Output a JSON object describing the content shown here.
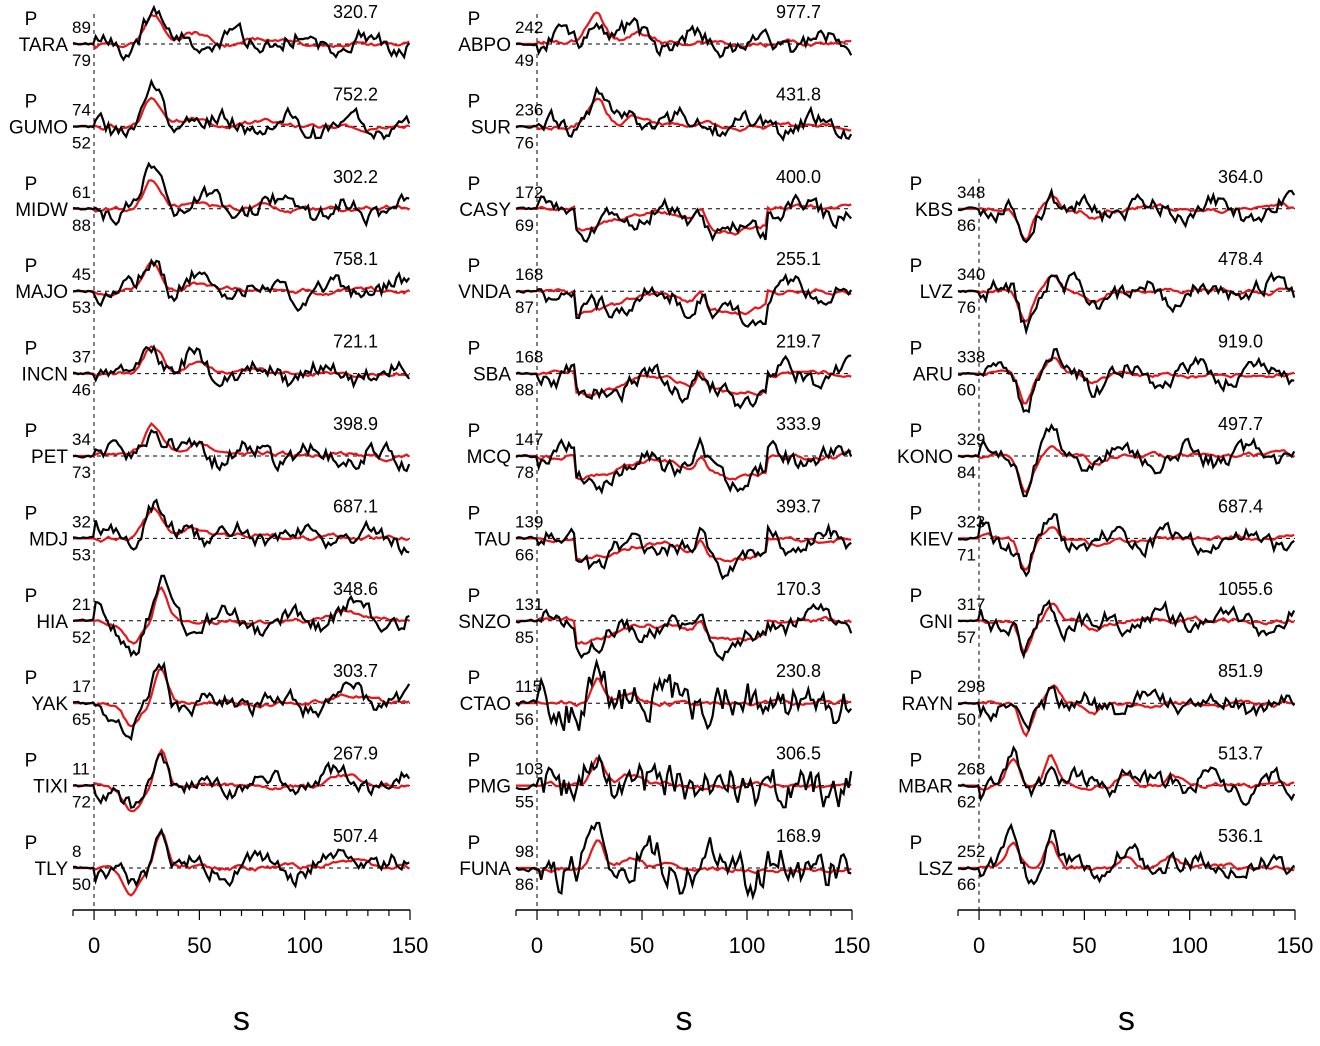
{
  "chart_data": {
    "type": "line",
    "phase_label": "P",
    "xlabel": "s",
    "xlim": [
      -10,
      150
    ],
    "xticks": [
      0,
      50,
      100,
      150
    ],
    "trace_colors": {
      "observed": "#000000",
      "synthetic": "#e8161b"
    },
    "columns": [
      {
        "stations": [
          {
            "name": "TARA",
            "azimuth": "89",
            "distance": "79",
            "amplitude": "320.7",
            "shape": "pos",
            "seed": 1
          },
          {
            "name": "GUMO",
            "azimuth": "74",
            "distance": "52",
            "amplitude": "752.2",
            "shape": "pos",
            "seed": 2
          },
          {
            "name": "MIDW",
            "azimuth": "61",
            "distance": "88",
            "amplitude": "302.2",
            "shape": "pos",
            "seed": 3
          },
          {
            "name": "MAJO",
            "azimuth": "45",
            "distance": "53",
            "amplitude": "758.1",
            "shape": "pos",
            "seed": 4
          },
          {
            "name": "INCN",
            "azimuth": "37",
            "distance": "46",
            "amplitude": "721.1",
            "shape": "pos",
            "seed": 5
          },
          {
            "name": "PET",
            "azimuth": "34",
            "distance": "73",
            "amplitude": "398.9",
            "shape": "pos",
            "seed": 6
          },
          {
            "name": "MDJ",
            "azimuth": "32",
            "distance": "53",
            "amplitude": "687.1",
            "shape": "pos",
            "seed": 7
          },
          {
            "name": "HIA",
            "azimuth": "21",
            "distance": "52",
            "amplitude": "348.6",
            "shape": "dippos",
            "seed": 8
          },
          {
            "name": "YAK",
            "azimuth": "17",
            "distance": "65",
            "amplitude": "303.7",
            "shape": "dippos",
            "seed": 9
          },
          {
            "name": "TIXI",
            "azimuth": "11",
            "distance": "72",
            "amplitude": "267.9",
            "shape": "dippos",
            "seed": 10
          },
          {
            "name": "TLY",
            "azimuth": "8",
            "distance": "50",
            "amplitude": "507.4",
            "shape": "dippos",
            "seed": 11
          }
        ]
      },
      {
        "stations": [
          {
            "name": "ABPO",
            "azimuth": "242",
            "distance": "49",
            "amplitude": "977.7",
            "shape": "pos",
            "seed": 12
          },
          {
            "name": "SUR",
            "azimuth": "236",
            "distance": "76",
            "amplitude": "431.8",
            "shape": "pos",
            "seed": 13
          },
          {
            "name": "CASY",
            "azimuth": "172",
            "distance": "69",
            "amplitude": "400.0",
            "shape": "neglong",
            "seed": 14
          },
          {
            "name": "VNDA",
            "azimuth": "168",
            "distance": "87",
            "amplitude": "255.1",
            "shape": "neglong",
            "seed": 15
          },
          {
            "name": "SBA",
            "azimuth": "168",
            "distance": "88",
            "amplitude": "219.7",
            "shape": "neglong",
            "seed": 16
          },
          {
            "name": "MCQ",
            "azimuth": "147",
            "distance": "78",
            "amplitude": "333.9",
            "shape": "neglong",
            "seed": 17
          },
          {
            "name": "TAU",
            "azimuth": "139",
            "distance": "66",
            "amplitude": "393.7",
            "shape": "neglong",
            "seed": 18
          },
          {
            "name": "SNZO",
            "azimuth": "131",
            "distance": "85",
            "amplitude": "170.3",
            "shape": "neglong",
            "seed": 19
          },
          {
            "name": "CTAO",
            "azimuth": "115",
            "distance": "56",
            "amplitude": "230.8",
            "shape": "noisy",
            "seed": 20
          },
          {
            "name": "PMG",
            "azimuth": "103",
            "distance": "55",
            "amplitude": "306.5",
            "shape": "noisy",
            "seed": 21
          },
          {
            "name": "FUNA",
            "azimuth": "98",
            "distance": "86",
            "amplitude": "168.9",
            "shape": "noisy",
            "seed": 22
          }
        ]
      },
      {
        "stations": [
          {
            "name": "KBS",
            "azimuth": "348",
            "distance": "86",
            "amplitude": "364.0",
            "shape": "neg",
            "seed": 23
          },
          {
            "name": "LVZ",
            "azimuth": "340",
            "distance": "76",
            "amplitude": "478.4",
            "shape": "neg",
            "seed": 24
          },
          {
            "name": "ARU",
            "azimuth": "338",
            "distance": "60",
            "amplitude": "919.0",
            "shape": "neg",
            "seed": 25
          },
          {
            "name": "KONO",
            "azimuth": "329",
            "distance": "84",
            "amplitude": "497.7",
            "shape": "neg",
            "seed": 26
          },
          {
            "name": "KIEV",
            "azimuth": "323",
            "distance": "71",
            "amplitude": "687.4",
            "shape": "neg",
            "seed": 27
          },
          {
            "name": "GNI",
            "azimuth": "317",
            "distance": "57",
            "amplitude": "1055.6",
            "shape": "neg",
            "seed": 28
          },
          {
            "name": "RAYN",
            "azimuth": "298",
            "distance": "50",
            "amplitude": "851.9",
            "shape": "neg",
            "seed": 29
          },
          {
            "name": "MBAR",
            "azimuth": "268",
            "distance": "62",
            "amplitude": "513.7",
            "shape": "twopos",
            "seed": 30
          },
          {
            "name": "LSZ",
            "azimuth": "252",
            "distance": "66",
            "amplitude": "536.1",
            "shape": "twopos",
            "seed": 31
          }
        ]
      }
    ]
  }
}
